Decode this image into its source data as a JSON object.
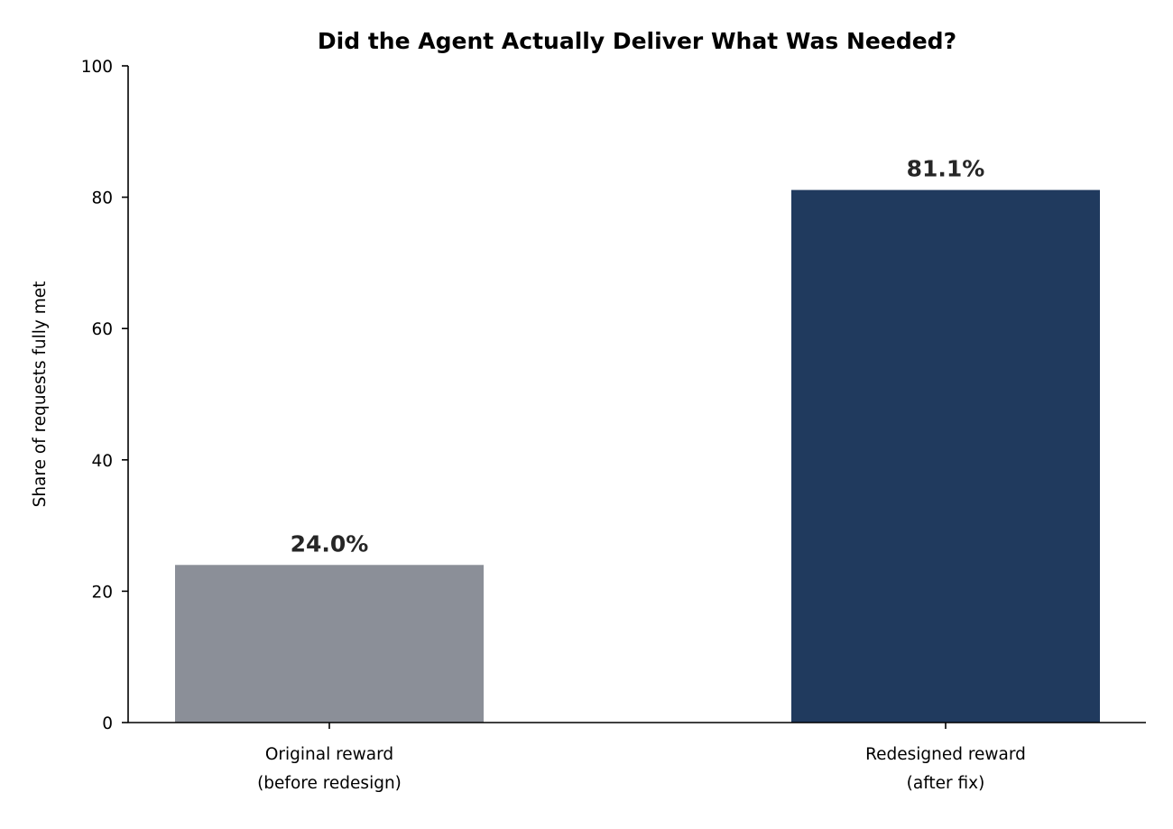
{
  "chart_data": {
    "type": "bar",
    "title": "Did the Agent Actually Deliver What Was Needed?",
    "xlabel": "",
    "ylabel": "Share of requests fully met",
    "categories": [
      [
        "Original reward",
        "(before redesign)"
      ],
      [
        "Redesigned reward",
        "(after fix)"
      ]
    ],
    "values": [
      24.0,
      81.1
    ],
    "value_labels": [
      "24.0%",
      "81.1%"
    ],
    "colors": [
      "#8b8f98",
      "#203a5e"
    ],
    "ylim": [
      0,
      100
    ],
    "yticks": [
      0,
      20,
      40,
      60,
      80,
      100
    ],
    "grid": false,
    "legend": "none"
  }
}
